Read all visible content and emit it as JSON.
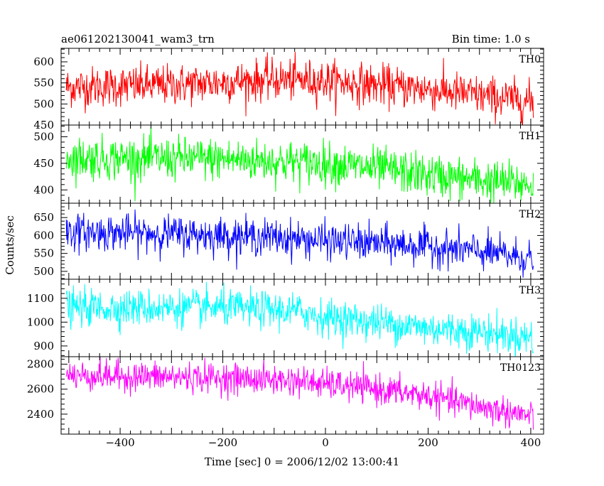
{
  "chart_data": {
    "type": "line",
    "title": "ae061202130041_wam3_trn",
    "subtitle": "Bin time: 1.0 s",
    "xlabel": "Time [sec] 0 = 2006/12/02 13:00:41",
    "ylabel": "Counts/sec",
    "xlim": [
      -515,
      425
    ],
    "x_ticks": [
      -400,
      -200,
      0,
      200,
      400
    ],
    "x_tick_labels": [
      "−400",
      "−200",
      "0",
      "200",
      "400"
    ],
    "x_range_data": [
      -505,
      405
    ],
    "grid": false,
    "panels": [
      {
        "name": "TH0",
        "color": "#ff0000",
        "ylim": [
          450,
          632
        ],
        "y_ticks": [
          450,
          500,
          550,
          600
        ],
        "y_tick_labels": [
          "450",
          "500",
          "550",
          "600"
        ],
        "trend": [
          [
            -505,
            540
          ],
          [
            -300,
            545
          ],
          [
            -100,
            558
          ],
          [
            0,
            555
          ],
          [
            100,
            545
          ],
          [
            200,
            535
          ],
          [
            300,
            520
          ],
          [
            405,
            505
          ]
        ],
        "noise_sd": 24
      },
      {
        "name": "TH1",
        "color": "#00ff00",
        "ylim": [
          375,
          522
        ],
        "y_ticks": [
          400,
          450,
          500
        ],
        "y_tick_labels": [
          "400",
          "450",
          "500"
        ],
        "trend": [
          [
            -505,
            460
          ],
          [
            -200,
            458
          ],
          [
            0,
            450
          ],
          [
            100,
            440
          ],
          [
            200,
            428
          ],
          [
            300,
            418
          ],
          [
            405,
            410
          ]
        ],
        "noise_sd": 20
      },
      {
        "name": "TH2",
        "color": "#0000ff",
        "ylim": [
          478,
          690
        ],
        "y_ticks": [
          500,
          550,
          600,
          650
        ],
        "y_tick_labels": [
          "500",
          "550",
          "600",
          "650"
        ],
        "trend": [
          [
            -505,
            610
          ],
          [
            -300,
            605
          ],
          [
            -100,
            595
          ],
          [
            0,
            585
          ],
          [
            100,
            578
          ],
          [
            200,
            570
          ],
          [
            300,
            555
          ],
          [
            405,
            535
          ]
        ],
        "noise_sd": 25
      },
      {
        "name": "TH3",
        "color": "#00ffff",
        "ylim": [
          855,
          1180
        ],
        "y_ticks": [
          900,
          1000,
          1100
        ],
        "y_tick_labels": [
          "900",
          "1000",
          "1100"
        ],
        "trend": [
          [
            -505,
            1060
          ],
          [
            -200,
            1060
          ],
          [
            -50,
            1045
          ],
          [
            0,
            1020
          ],
          [
            100,
            1000
          ],
          [
            200,
            975
          ],
          [
            300,
            960
          ],
          [
            405,
            935
          ]
        ],
        "noise_sd": 38
      },
      {
        "name": "TH0123",
        "color": "#ff00ff",
        "ylim": [
          2240,
          2860
        ],
        "y_ticks": [
          2400,
          2600,
          2800
        ],
        "y_tick_labels": [
          "2400",
          "2600",
          "2800"
        ],
        "trend": [
          [
            -505,
            2710
          ],
          [
            -200,
            2690
          ],
          [
            -50,
            2665
          ],
          [
            0,
            2640
          ],
          [
            100,
            2600
          ],
          [
            200,
            2545
          ],
          [
            300,
            2460
          ],
          [
            405,
            2380
          ]
        ],
        "noise_sd": 60
      }
    ]
  }
}
